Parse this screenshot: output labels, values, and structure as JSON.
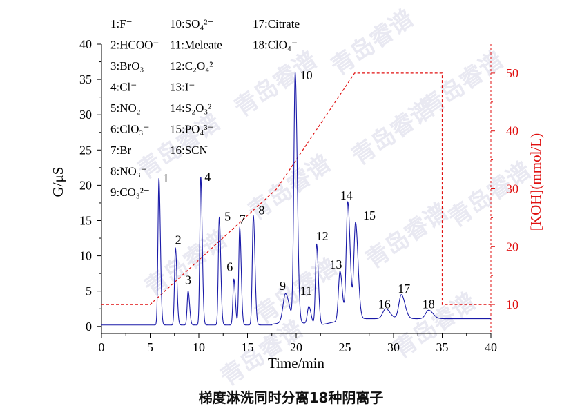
{
  "caption": "梯度淋洗同时分离18种阴离子",
  "watermark": "青岛睿谱",
  "chart_data": {
    "type": "line",
    "xlabel": "Time/min",
    "ylabel": "G/μS",
    "y2label": "[KOH](mmol/L)",
    "xlim": [
      0,
      40
    ],
    "ylim": [
      -1,
      40
    ],
    "y2lim": [
      5,
      55
    ],
    "xticks": [
      0,
      5,
      10,
      15,
      20,
      25,
      30,
      35,
      40
    ],
    "yticks": [
      0,
      5,
      10,
      15,
      20,
      25,
      30,
      35,
      40
    ],
    "y2ticks": [
      10,
      20,
      30,
      40,
      50
    ],
    "colors": {
      "signal": "#1a1aa8",
      "gradient": "#e01010",
      "axis": "#000000",
      "right_axis": "#e01010"
    },
    "legend": [
      "1:F⁻",
      "2:HCOO⁻",
      "3:BrO₃⁻",
      "4:Cl⁻",
      "5:NO₂⁻",
      "6:ClO₃⁻",
      "7:Br⁻",
      "8:NO₃⁻",
      "9:CO₃²⁻",
      "10:SO₄²⁻",
      "11:Meleate",
      "12:C₂O₄²⁻",
      "13:I⁻",
      "14:S₂O₃²⁻",
      "15:PO₄³⁻",
      "16:SCN⁻",
      "17:Citrate",
      "18:ClO₄⁻"
    ],
    "baseline": 0.2,
    "peaks": [
      {
        "label": "1",
        "rt": 5.9,
        "height": 20.8,
        "width": 0.1
      },
      {
        "label": "2",
        "rt": 7.6,
        "height": 10.9,
        "width": 0.1
      },
      {
        "label": "3",
        "rt": 8.9,
        "height": 4.8,
        "width": 0.1
      },
      {
        "label": "4",
        "rt": 10.2,
        "height": 21.0,
        "width": 0.1
      },
      {
        "label": "5",
        "rt": 12.1,
        "height": 15.2,
        "width": 0.1
      },
      {
        "label": "6",
        "rt": 13.6,
        "height": 6.5,
        "width": 0.1
      },
      {
        "label": "7",
        "rt": 14.2,
        "height": 13.8,
        "width": 0.1
      },
      {
        "label": "8",
        "rt": 15.6,
        "height": 15.5,
        "width": 0.11
      },
      {
        "label": "9",
        "rt": 18.9,
        "height": 4.0,
        "width": 0.25
      },
      {
        "label": "10",
        "rt": 19.9,
        "height": 35.2,
        "width": 0.14
      },
      {
        "label": "11",
        "rt": 21.3,
        "height": 2.5,
        "width": 0.15
      },
      {
        "label": "12",
        "rt": 22.1,
        "height": 11.4,
        "width": 0.12
      },
      {
        "label": "13",
        "rt": 24.5,
        "height": 7.0,
        "width": 0.16
      },
      {
        "label": "14",
        "rt": 25.3,
        "height": 16.6,
        "width": 0.16
      },
      {
        "label": "15",
        "rt": 26.1,
        "height": 13.6,
        "width": 0.17
      },
      {
        "label": "16",
        "rt": 29.2,
        "height": 1.4,
        "width": 0.3
      },
      {
        "label": "17",
        "rt": 30.8,
        "height": 3.4,
        "width": 0.25
      },
      {
        "label": "18",
        "rt": 33.6,
        "height": 1.2,
        "width": 0.3
      }
    ],
    "gradient_program": [
      {
        "t": 0,
        "koh": 10
      },
      {
        "t": 5,
        "koh": 10
      },
      {
        "t": 18,
        "koh": 30
      },
      {
        "t": 26,
        "koh": 50
      },
      {
        "t": 35,
        "koh": 50
      },
      {
        "t": 35,
        "koh": 10
      },
      {
        "t": 40,
        "koh": 10
      }
    ]
  }
}
